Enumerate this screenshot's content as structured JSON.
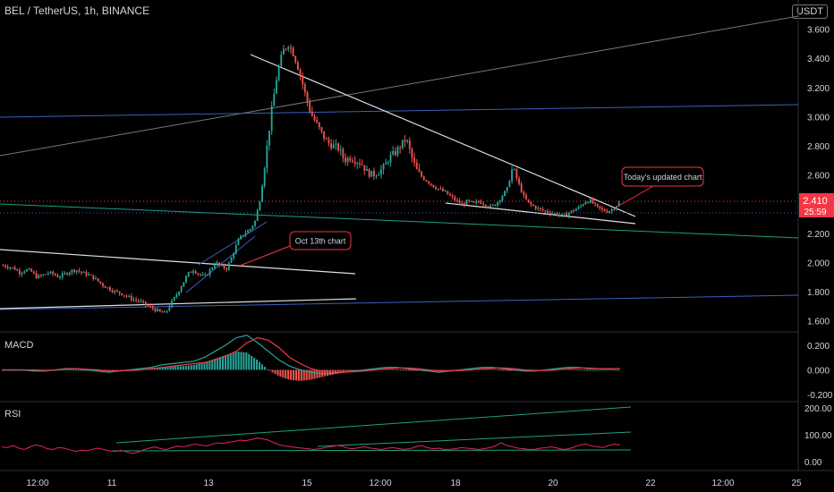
{
  "header": {
    "title": "BEL / TetherUS, 1h, BINANCE",
    "currency_badge": "USDT"
  },
  "colors": {
    "background": "#000000",
    "up": "#26a69a",
    "down": "#ef5350",
    "ema": "#888888",
    "price_label": "#f23645",
    "trendline": "#e0e0e0",
    "channel_blue": "#3b5fc0",
    "channel_teal": "#1f9e86",
    "macd_line": "#26a69a",
    "signal_line": "#f23645",
    "rsi_line": "#e0245e"
  },
  "chart_data": [
    {
      "type": "candlestick",
      "name": "price",
      "currency": "USDT",
      "x_tick_labels": [
        "12:00",
        "11",
        "13",
        "15",
        "12:00",
        "18",
        "20",
        "22",
        "12:00",
        "25"
      ],
      "y_ticks": [
        1.6,
        1.8,
        2.0,
        2.2,
        2.4,
        2.6,
        2.8,
        3.0,
        3.2,
        3.4,
        3.6
      ],
      "y_tick_labels": [
        "1.600",
        "1.800",
        "2.000",
        "2.200",
        "2.400",
        "2.600",
        "2.800",
        "3.000",
        "3.200",
        "3.400",
        "3.600"
      ],
      "ylim": [
        1.53,
        3.8
      ],
      "last_price": "2.410",
      "countdown": "25:59",
      "close_path": [
        1.98,
        1.97,
        1.96,
        1.93,
        1.95,
        1.94,
        1.9,
        1.91,
        1.93,
        1.92,
        1.9,
        1.92,
        1.94,
        1.95,
        1.93,
        1.92,
        1.9,
        1.87,
        1.84,
        1.82,
        1.8,
        1.79,
        1.77,
        1.75,
        1.74,
        1.72,
        1.7,
        1.68,
        1.66,
        1.65,
        1.72,
        1.78,
        1.85,
        1.92,
        1.95,
        1.92,
        1.9,
        1.95,
        2.0,
        1.97,
        1.96,
        2.05,
        2.15,
        2.2,
        2.22,
        2.28,
        2.45,
        2.75,
        3.05,
        3.3,
        3.45,
        3.5,
        3.42,
        3.3,
        3.15,
        3.02,
        2.95,
        2.88,
        2.82,
        2.8,
        2.78,
        2.7,
        2.72,
        2.7,
        2.68,
        2.62,
        2.6,
        2.62,
        2.65,
        2.72,
        2.75,
        2.8,
        2.85,
        2.72,
        2.62,
        2.58,
        2.55,
        2.52,
        2.5,
        2.48,
        2.45,
        2.42,
        2.4,
        2.42,
        2.4,
        2.42,
        2.4,
        2.38,
        2.4,
        2.45,
        2.5,
        2.65,
        2.55,
        2.45,
        2.4,
        2.38,
        2.36,
        2.35,
        2.34,
        2.33,
        2.32,
        2.34,
        2.36,
        2.38,
        2.42,
        2.42,
        2.38,
        2.36,
        2.35,
        2.37,
        2.41
      ],
      "annotations": [
        "Oct 13th chart",
        "Today's updated chart"
      ]
    },
    {
      "type": "macd",
      "label": "MACD",
      "y_ticks": [
        -0.2,
        0.0,
        0.2
      ],
      "y_tick_labels": [
        "-0.200",
        "0.000",
        "0.200"
      ],
      "ylim": [
        -0.25,
        0.3
      ],
      "histogram": [
        0,
        0,
        0,
        0,
        -0.005,
        0,
        0.005,
        0,
        0,
        -0.01,
        -0.01,
        -0.005,
        0,
        0.005,
        0.01,
        0.02,
        0.03,
        0.03,
        0.04,
        0.06,
        0.09,
        0.12,
        0.15,
        0.14,
        0.08,
        0,
        -0.05,
        -0.08,
        -0.09,
        -0.08,
        -0.06,
        -0.04,
        -0.02,
        -0.01,
        0,
        0.005,
        0.01,
        0.005,
        0,
        -0.005,
        -0.01,
        -0.01,
        -0.005,
        0,
        0.005,
        0.01,
        0.01,
        0,
        -0.005,
        -0.01,
        -0.005,
        0,
        0.005,
        0.01,
        0.005,
        0,
        0,
        0.005,
        0
      ],
      "macd_line": [
        0,
        0,
        0,
        -0.01,
        -0.01,
        0,
        0.01,
        0.01,
        0,
        -0.01,
        -0.02,
        -0.01,
        0,
        0.01,
        0.02,
        0.04,
        0.05,
        0.06,
        0.07,
        0.1,
        0.15,
        0.2,
        0.26,
        0.28,
        0.22,
        0.15,
        0.08,
        0.03,
        0,
        -0.02,
        -0.03,
        -0.03,
        -0.02,
        -0.01,
        0,
        0.01,
        0.02,
        0.02,
        0.01,
        0,
        -0.01,
        -0.02,
        -0.01,
        0,
        0.01,
        0.02,
        0.02,
        0.01,
        0,
        -0.01,
        -0.01,
        0,
        0.01,
        0.02,
        0.02,
        0.01,
        0.01,
        0.01,
        0.01
      ],
      "signal_line": [
        0,
        0,
        0,
        0,
        -0.005,
        0,
        0.005,
        0.01,
        0.005,
        0,
        -0.01,
        -0.01,
        -0.005,
        0,
        0.01,
        0.02,
        0.03,
        0.04,
        0.05,
        0.06,
        0.08,
        0.11,
        0.15,
        0.22,
        0.26,
        0.24,
        0.18,
        0.1,
        0.05,
        0.01,
        -0.01,
        -0.02,
        -0.02,
        -0.015,
        -0.01,
        0,
        0.01,
        0.015,
        0.015,
        0.01,
        0,
        -0.01,
        -0.01,
        -0.005,
        0,
        0.01,
        0.015,
        0.015,
        0.01,
        0,
        -0.005,
        -0.005,
        0,
        0.01,
        0.015,
        0.015,
        0.01,
        0.01,
        0.01
      ]
    },
    {
      "type": "line",
      "label": "RSI",
      "y_ticks": [
        0,
        100,
        200
      ],
      "y_tick_labels": [
        "0.00",
        "100.00",
        "200.00"
      ],
      "ylim": [
        -30,
        220
      ],
      "values": [
        55,
        52,
        60,
        50,
        45,
        55,
        62,
        58,
        48,
        45,
        52,
        50,
        44,
        38,
        42,
        40,
        46,
        50,
        45,
        40,
        38,
        42,
        36,
        30,
        35,
        44,
        50,
        55,
        48,
        45,
        52,
        58,
        55,
        60,
        65,
        62,
        58,
        64,
        70,
        68,
        72,
        75,
        80,
        78,
        82,
        88,
        85,
        80,
        70,
        62,
        58,
        55,
        52,
        50,
        48,
        45,
        48,
        52,
        55,
        60,
        58,
        50,
        48,
        52,
        55,
        50,
        48,
        45,
        50,
        52,
        48,
        46,
        48,
        55,
        60,
        52,
        48,
        50,
        45,
        46,
        48,
        52,
        50,
        48,
        45,
        48,
        52,
        58,
        70,
        60,
        55,
        50,
        48,
        45,
        46,
        50,
        52,
        55,
        50,
        45,
        48,
        55,
        62,
        65,
        58,
        55,
        52,
        60,
        65,
        62
      ]
    }
  ]
}
